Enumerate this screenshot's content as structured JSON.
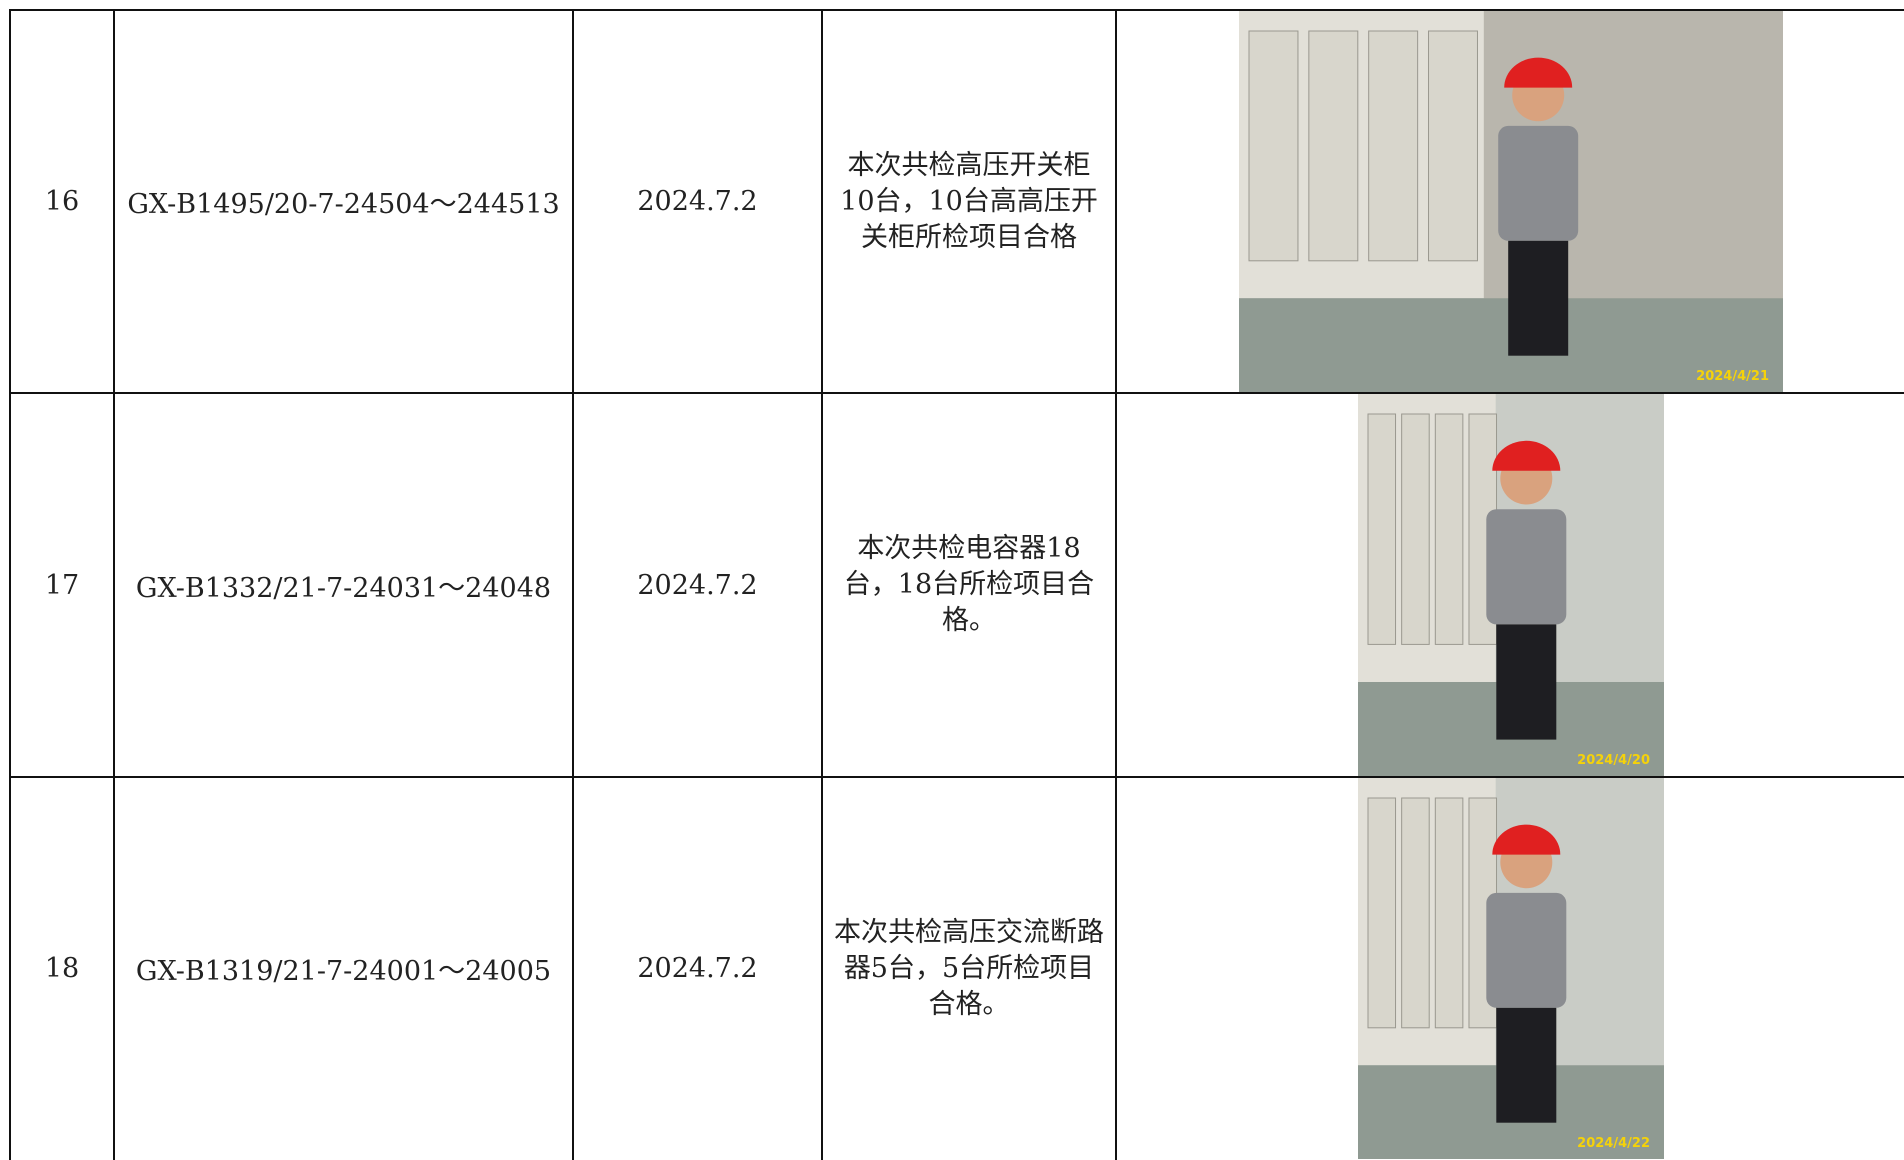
{
  "table": {
    "rows": [
      {
        "no": "16",
        "code": "GX-B1495/20-7-24504～244513",
        "date": "2024.7.2",
        "result": "本次共检高压开关柜10台，10台高高压开关柜所检项目合格",
        "photo_stamp": "2024/4/21"
      },
      {
        "no": "17",
        "code": "GX-B1332/21-7-24031～24048",
        "date": "2024.7.2",
        "result": "本次共检电容器18台，18台所检项目合格。",
        "photo_stamp": "2024/4/20"
      },
      {
        "no": "18",
        "code": "GX-B1319/21-7-24001～24005",
        "date": "2024.7.2",
        "result": "本次共检高压交流断路器5台，5台所检项目合格。",
        "photo_stamp": "2024/4/22"
      }
    ]
  }
}
